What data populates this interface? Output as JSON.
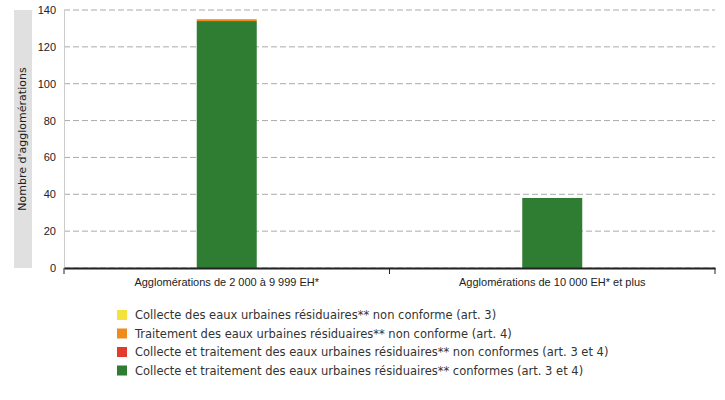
{
  "chart_data": {
    "type": "bar",
    "stacked": true,
    "grid": true,
    "legend": "bottom",
    "y_label": "Nombre d'agglomérations",
    "categories": [
      "Agglomérations de 2 000 à 9 999 EH*",
      "Agglomérations de 10 000 EH* et plus"
    ],
    "series": [
      {
        "name": "Collecte des eaux urbaines résiduaires** non conforme (art. 3)",
        "color": "#f5e23a",
        "values": [
          0,
          0
        ]
      },
      {
        "name": "Traitement des eaux urbaines résiduaires** non conforme (art. 4)",
        "color": "#ef8a1d",
        "values": [
          1,
          0
        ]
      },
      {
        "name": "Collecte et traitement des eaux urbaines résiduaires** non conformes (art. 3 et 4)",
        "color": "#e23b2e",
        "values": [
          0,
          0
        ]
      },
      {
        "name": "Collecte et traitement des eaux urbaines résiduaires** conformes (art. 3 et 4)",
        "color": "#2e7d32",
        "values": [
          134,
          38
        ]
      }
    ],
    "ylim": [
      0,
      140
    ],
    "yticks": [
      0,
      20,
      40,
      60,
      80,
      100,
      120,
      140
    ]
  }
}
